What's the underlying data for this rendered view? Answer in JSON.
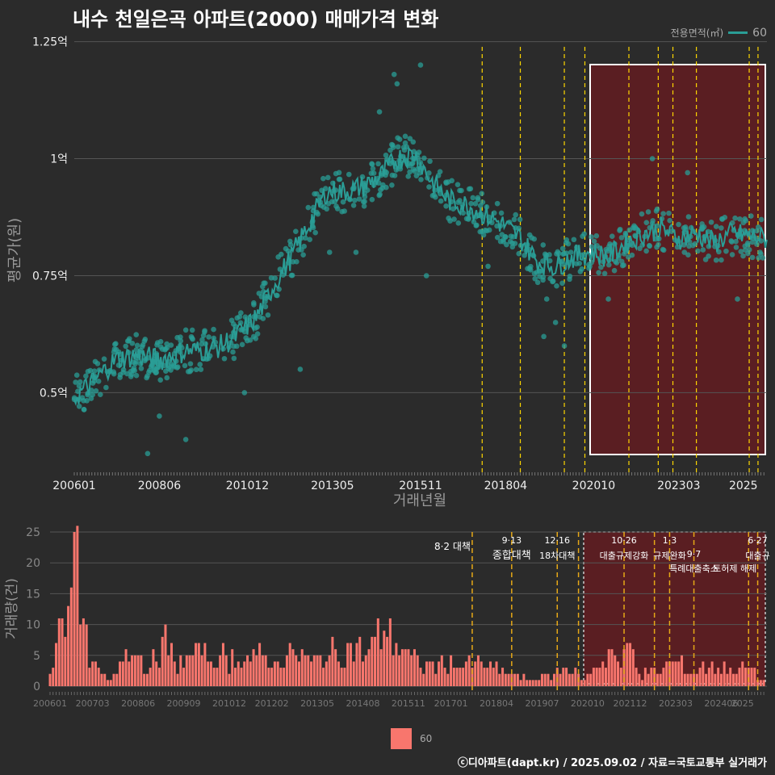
{
  "title": "내수 천일은곡 아파트(2000) 매매가격 변화",
  "legend_top": {
    "title": "전용면적(㎡)",
    "name": "60"
  },
  "legend_bottom": {
    "name": "60"
  },
  "footer": "ⓒ디아파트(dapt.kr) / 2025.09.02 / 자료=국토교통부 실거래가",
  "colors": {
    "background": "#2b2b2b",
    "price": "#2a9d96",
    "volume": "#f8766d",
    "policy": "#ffd700",
    "policy_bottom": "#e6a817",
    "highlight": "#5a1e22"
  },
  "chart_data": [
    {
      "type": "scatter",
      "title": "내수 천일은곡 아파트(2000) 매매가격 변화",
      "xlabel": "거래년월",
      "ylabel": "평균가(원)",
      "ylim": [
        0.33,
        1.27
      ],
      "y_ticks": [
        {
          "v": 0.5,
          "label": "0.5억"
        },
        {
          "v": 0.75,
          "label": "0.75억"
        },
        {
          "v": 1.0,
          "label": "1억"
        },
        {
          "v": 1.25,
          "label": "1.25억"
        }
      ],
      "x_ticks": [
        "200601",
        "200806",
        "201012",
        "201305",
        "201511",
        "201804",
        "202010",
        "202303",
        "2025"
      ],
      "series": [
        {
          "name": "60",
          "trend": [
            [
              "2006-01",
              0.49
            ],
            [
              "2006-07",
              0.52
            ],
            [
              "2007-03",
              0.57
            ],
            [
              "2007-10",
              0.58
            ],
            [
              "2008-06",
              0.57
            ],
            [
              "2009-03",
              0.59
            ],
            [
              "2009-09",
              0.59
            ],
            [
              "2010-03",
              0.6
            ],
            [
              "2010-08",
              0.62
            ],
            [
              "2011-03",
              0.66
            ],
            [
              "2011-09",
              0.73
            ],
            [
              "2012-03",
              0.79
            ],
            [
              "2012-09",
              0.86
            ],
            [
              "2013-03",
              0.93
            ],
            [
              "2013-09",
              0.93
            ],
            [
              "2014-03",
              0.94
            ],
            [
              "2014-09",
              0.96
            ],
            [
              "2015-03",
              1.0
            ],
            [
              "2015-09",
              1.01
            ],
            [
              "2016-03",
              0.95
            ],
            [
              "2016-09",
              0.91
            ],
            [
              "2017-03",
              0.9
            ],
            [
              "2017-09",
              0.88
            ],
            [
              "2018-03",
              0.86
            ],
            [
              "2018-09",
              0.83
            ],
            [
              "2019-03",
              0.78
            ],
            [
              "2019-09",
              0.77
            ],
            [
              "2020-03",
              0.79
            ],
            [
              "2020-09",
              0.8
            ],
            [
              "2021-03",
              0.79
            ],
            [
              "2021-09",
              0.82
            ],
            [
              "2022-03",
              0.84
            ],
            [
              "2022-09",
              0.85
            ],
            [
              "2023-03",
              0.83
            ],
            [
              "2023-09",
              0.84
            ],
            [
              "2024-03",
              0.82
            ],
            [
              "2024-09",
              0.84
            ],
            [
              "2025-08",
              0.83
            ]
          ],
          "outliers": [
            [
              "2008-02",
              0.37
            ],
            [
              "2008-06",
              0.45
            ],
            [
              "2009-03",
              0.4
            ],
            [
              "2010-11",
              0.5
            ],
            [
              "2012-06",
              0.55
            ],
            [
              "2013-04",
              0.8
            ],
            [
              "2014-01",
              0.8
            ],
            [
              "2014-09",
              1.1
            ],
            [
              "2015-02",
              1.18
            ],
            [
              "2015-03",
              1.16
            ],
            [
              "2015-11",
              1.2
            ],
            [
              "2016-01",
              0.75
            ],
            [
              "2017-10",
              0.77
            ],
            [
              "2019-05",
              0.62
            ],
            [
              "2019-06",
              0.7
            ],
            [
              "2019-09",
              0.65
            ],
            [
              "2019-12",
              0.6
            ],
            [
              "2021-03",
              0.7
            ],
            [
              "2022-06",
              1.0
            ],
            [
              "2023-06",
              0.97
            ],
            [
              "2024-11",
              0.7
            ]
          ]
        }
      ]
    },
    {
      "type": "bar",
      "ylabel": "거래량(건)",
      "ylim": [
        0,
        25
      ],
      "y_ticks": [
        0,
        5,
        10,
        15,
        20,
        25
      ],
      "x_ticks": [
        "200601",
        "200703",
        "200806",
        "200909",
        "201012",
        "201202",
        "201305",
        "201408",
        "201511",
        "201701",
        "201804",
        "201907",
        "202010",
        "202112",
        "202303",
        "202406",
        "2025"
      ],
      "series": [
        {
          "name": "60",
          "peaks": [
            [
              "2006-01",
              2
            ],
            [
              "2006-03",
              7
            ],
            [
              "2006-05",
              11
            ],
            [
              "2006-07",
              13
            ],
            [
              "2006-09",
              25
            ],
            [
              "2006-11",
              10
            ],
            [
              "2007-03",
              4
            ],
            [
              "2007-06",
              2
            ],
            [
              "2007-09",
              1
            ],
            [
              "2008-02",
              6
            ],
            [
              "2008-06",
              5
            ],
            [
              "2008-10",
              3
            ],
            [
              "2009-02",
              8
            ],
            [
              "2009-06",
              4
            ],
            [
              "2009-10",
              5
            ],
            [
              "2010-03",
              5
            ],
            [
              "2010-09",
              5
            ],
            [
              "2011-03",
              4
            ],
            [
              "2011-09",
              5
            ],
            [
              "2012-03",
              4
            ],
            [
              "2012-09",
              6
            ],
            [
              "2013-03",
              4
            ],
            [
              "2013-09",
              5
            ],
            [
              "2014-03",
              7
            ],
            [
              "2014-09",
              5
            ],
            [
              "2015-03",
              9
            ],
            [
              "2015-09",
              6
            ],
            [
              "2016-03",
              3
            ],
            [
              "2016-09",
              4
            ],
            [
              "2017-03",
              3
            ],
            [
              "2017-09",
              4
            ],
            [
              "2018-03",
              3
            ],
            [
              "2018-09",
              2
            ],
            [
              "2019-03",
              1
            ],
            [
              "2019-09",
              2
            ],
            [
              "2020-03",
              3
            ],
            [
              "2020-09",
              1
            ],
            [
              "2021-03",
              4
            ],
            [
              "2021-06",
              6
            ],
            [
              "2021-09",
              3
            ],
            [
              "2021-12",
              7
            ],
            [
              "2022-03",
              2
            ],
            [
              "2022-09",
              2
            ],
            [
              "2023-03",
              4
            ],
            [
              "2023-09",
              2
            ],
            [
              "2024-03",
              4
            ],
            [
              "2024-09",
              3
            ],
            [
              "2025-03",
              3
            ],
            [
              "2025-08",
              1
            ]
          ]
        }
      ]
    }
  ],
  "policies": [
    {
      "date": "2017-08",
      "label1": "8·2 대책",
      "label2": ""
    },
    {
      "date": "2018-09",
      "label1": "9·13",
      "label2": "종합대책"
    },
    {
      "date": "2019-12",
      "label1": "12·16",
      "label2": "18차대책"
    },
    {
      "date": "2020-07",
      "label1": "",
      "label2": ""
    },
    {
      "date": "2021-10",
      "label1": "10·26",
      "label2": "대출규제강화"
    },
    {
      "date": "2022-08",
      "label1": "",
      "label2": ""
    },
    {
      "date": "2023-01",
      "label1": "1·3",
      "label2": "규제완화"
    },
    {
      "date": "2023-09",
      "label1": "9·7",
      "label2": "특례대출축소"
    },
    {
      "date": "2025-03",
      "label1": "",
      "label2": "토허제 해제"
    },
    {
      "date": "2025-06",
      "label1": "6·27",
      "label2": "대출규"
    }
  ]
}
